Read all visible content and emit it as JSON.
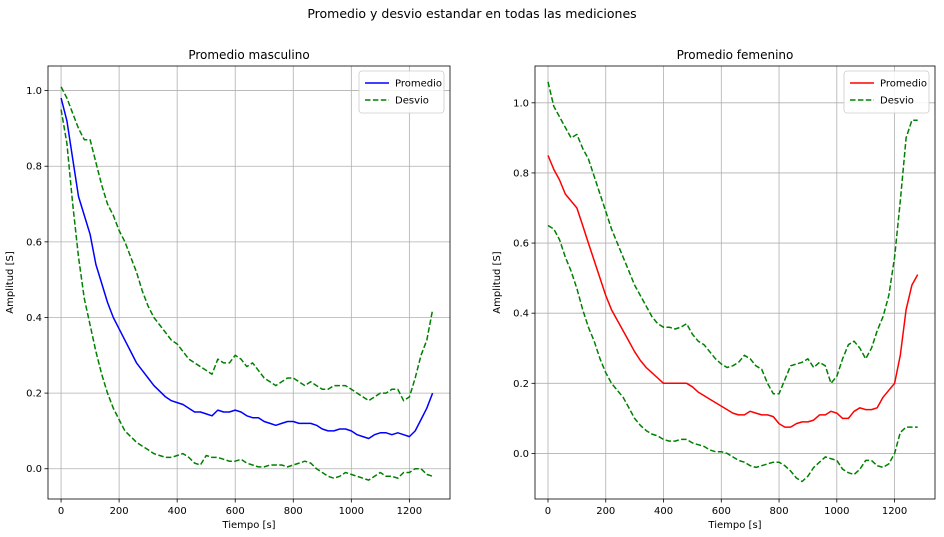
{
  "figure": {
    "title": "Promedio y desvio estandar en todas las mediciones"
  },
  "chart_data": [
    {
      "type": "line",
      "title": "Promedio  masculino",
      "xlabel": "Tiempo [s]",
      "ylabel": "Amplitud [S]",
      "xlim": [
        -45,
        1340
      ],
      "ylim": [
        -0.08,
        1.065
      ],
      "xticks": [
        0,
        200,
        400,
        600,
        800,
        1000,
        1200
      ],
      "xtick_labels": [
        "0",
        "200",
        "400",
        "600",
        "800",
        "1000",
        "1200"
      ],
      "yticks": [
        0.0,
        0.2,
        0.4,
        0.6,
        0.8,
        1.0
      ],
      "ytick_labels": [
        "0.0",
        "0.2",
        "0.4",
        "0.6",
        "0.8",
        "1.0"
      ],
      "grid": true,
      "legend": "top-right",
      "series": [
        {
          "name": "Promedio",
          "color": "#0000ff",
          "style": "solid",
          "x": [
            0,
            20,
            40,
            60,
            80,
            100,
            120,
            140,
            160,
            180,
            200,
            220,
            240,
            260,
            280,
            300,
            320,
            340,
            360,
            380,
            400,
            420,
            440,
            460,
            480,
            500,
            520,
            540,
            560,
            580,
            600,
            620,
            640,
            660,
            680,
            700,
            720,
            740,
            760,
            780,
            800,
            820,
            840,
            860,
            880,
            900,
            920,
            940,
            960,
            980,
            1000,
            1020,
            1040,
            1060,
            1080,
            1100,
            1120,
            1140,
            1160,
            1180,
            1200,
            1220,
            1240,
            1260,
            1280
          ],
          "y": [
            0.98,
            0.92,
            0.82,
            0.72,
            0.67,
            0.62,
            0.54,
            0.49,
            0.44,
            0.4,
            0.37,
            0.34,
            0.31,
            0.28,
            0.26,
            0.24,
            0.22,
            0.205,
            0.19,
            0.18,
            0.175,
            0.17,
            0.16,
            0.15,
            0.15,
            0.145,
            0.14,
            0.155,
            0.15,
            0.15,
            0.155,
            0.15,
            0.14,
            0.135,
            0.135,
            0.125,
            0.12,
            0.115,
            0.12,
            0.125,
            0.125,
            0.12,
            0.12,
            0.12,
            0.115,
            0.105,
            0.1,
            0.1,
            0.105,
            0.105,
            0.1,
            0.09,
            0.085,
            0.08,
            0.09,
            0.095,
            0.095,
            0.09,
            0.095,
            0.09,
            0.085,
            0.1,
            0.13,
            0.16,
            0.2
          ]
        },
        {
          "name": "Desvio",
          "color": "#008000",
          "style": "dashed",
          "x": [
            0,
            20,
            40,
            60,
            80,
            100,
            120,
            140,
            160,
            180,
            200,
            220,
            240,
            260,
            280,
            300,
            320,
            340,
            360,
            380,
            400,
            420,
            440,
            460,
            480,
            500,
            520,
            540,
            560,
            580,
            600,
            620,
            640,
            660,
            680,
            700,
            720,
            740,
            760,
            780,
            800,
            820,
            840,
            860,
            880,
            900,
            920,
            940,
            960,
            980,
            1000,
            1020,
            1040,
            1060,
            1080,
            1100,
            1120,
            1140,
            1160,
            1180,
            1200,
            1220,
            1240,
            1260,
            1280
          ],
          "y": [
            1.01,
            0.98,
            0.94,
            0.9,
            0.87,
            0.87,
            0.81,
            0.75,
            0.7,
            0.67,
            0.63,
            0.6,
            0.56,
            0.52,
            0.47,
            0.43,
            0.4,
            0.38,
            0.36,
            0.34,
            0.33,
            0.31,
            0.29,
            0.28,
            0.27,
            0.26,
            0.25,
            0.29,
            0.28,
            0.28,
            0.3,
            0.29,
            0.27,
            0.28,
            0.26,
            0.24,
            0.23,
            0.22,
            0.23,
            0.24,
            0.24,
            0.23,
            0.22,
            0.23,
            0.22,
            0.21,
            0.21,
            0.22,
            0.22,
            0.22,
            0.21,
            0.2,
            0.19,
            0.18,
            0.19,
            0.2,
            0.2,
            0.21,
            0.21,
            0.18,
            0.19,
            0.24,
            0.3,
            0.34,
            0.42
          ]
        },
        {
          "name": "",
          "color": "#008000",
          "style": "dashed",
          "x": [
            0,
            20,
            40,
            60,
            80,
            100,
            120,
            140,
            160,
            180,
            200,
            220,
            240,
            260,
            280,
            300,
            320,
            340,
            360,
            380,
            400,
            420,
            440,
            460,
            480,
            500,
            520,
            540,
            560,
            580,
            600,
            620,
            640,
            660,
            680,
            700,
            720,
            740,
            760,
            780,
            800,
            820,
            840,
            860,
            880,
            900,
            920,
            940,
            960,
            980,
            1000,
            1020,
            1040,
            1060,
            1080,
            1100,
            1120,
            1140,
            1160,
            1180,
            1200,
            1220,
            1240,
            1260,
            1280
          ],
          "y": [
            0.95,
            0.86,
            0.7,
            0.56,
            0.45,
            0.38,
            0.31,
            0.25,
            0.2,
            0.16,
            0.13,
            0.1,
            0.085,
            0.07,
            0.06,
            0.05,
            0.04,
            0.035,
            0.03,
            0.03,
            0.035,
            0.04,
            0.03,
            0.015,
            0.01,
            0.035,
            0.03,
            0.03,
            0.025,
            0.02,
            0.02,
            0.025,
            0.015,
            0.01,
            0.005,
            0.005,
            0.01,
            0.01,
            0.01,
            0.005,
            0.01,
            0.015,
            0.02,
            0.015,
            0.0,
            -0.01,
            -0.02,
            -0.025,
            -0.02,
            -0.01,
            -0.015,
            -0.02,
            -0.025,
            -0.03,
            -0.02,
            -0.01,
            -0.02,
            -0.02,
            -0.025,
            -0.01,
            -0.01,
            0.0,
            0.0,
            -0.015,
            -0.02
          ]
        }
      ]
    },
    {
      "type": "line",
      "title": "Promedio  femenino",
      "xlabel": "Tiempo [s]",
      "ylabel": "Amplitud [S]",
      "xlim": [
        -45,
        1340
      ],
      "ylim": [
        -0.13,
        1.105
      ],
      "xticks": [
        0,
        200,
        400,
        600,
        800,
        1000,
        1200
      ],
      "xtick_labels": [
        "0",
        "200",
        "400",
        "600",
        "800",
        "1000",
        "1200"
      ],
      "yticks": [
        0.0,
        0.2,
        0.4,
        0.6,
        0.8,
        1.0
      ],
      "ytick_labels": [
        "0.0",
        "0.2",
        "0.4",
        "0.6",
        "0.8",
        "1.0"
      ],
      "grid": true,
      "legend": "top-right",
      "series": [
        {
          "name": "Promedio",
          "color": "#ff0000",
          "style": "solid",
          "x": [
            0,
            20,
            40,
            60,
            80,
            100,
            120,
            140,
            160,
            180,
            200,
            220,
            240,
            260,
            280,
            300,
            320,
            340,
            360,
            380,
            400,
            420,
            440,
            460,
            480,
            500,
            520,
            540,
            560,
            580,
            600,
            620,
            640,
            660,
            680,
            700,
            720,
            740,
            760,
            780,
            800,
            820,
            840,
            860,
            880,
            900,
            920,
            940,
            960,
            980,
            1000,
            1020,
            1040,
            1060,
            1080,
            1100,
            1120,
            1140,
            1160,
            1180,
            1200,
            1220,
            1240,
            1260,
            1280
          ],
          "y": [
            0.85,
            0.81,
            0.78,
            0.74,
            0.72,
            0.7,
            0.65,
            0.6,
            0.55,
            0.5,
            0.45,
            0.41,
            0.38,
            0.35,
            0.32,
            0.29,
            0.265,
            0.245,
            0.23,
            0.215,
            0.2,
            0.2,
            0.2,
            0.2,
            0.2,
            0.19,
            0.175,
            0.165,
            0.155,
            0.145,
            0.135,
            0.125,
            0.115,
            0.11,
            0.11,
            0.12,
            0.115,
            0.11,
            0.11,
            0.105,
            0.085,
            0.075,
            0.075,
            0.085,
            0.09,
            0.09,
            0.095,
            0.11,
            0.11,
            0.12,
            0.115,
            0.1,
            0.1,
            0.12,
            0.13,
            0.125,
            0.125,
            0.13,
            0.16,
            0.18,
            0.2,
            0.28,
            0.41,
            0.48,
            0.51
          ]
        },
        {
          "name": "Desvio",
          "color": "#008000",
          "style": "dashed",
          "x": [
            0,
            20,
            40,
            60,
            80,
            100,
            120,
            140,
            160,
            180,
            200,
            220,
            240,
            260,
            280,
            300,
            320,
            340,
            360,
            380,
            400,
            420,
            440,
            460,
            480,
            500,
            520,
            540,
            560,
            580,
            600,
            620,
            640,
            660,
            680,
            700,
            720,
            740,
            760,
            780,
            800,
            820,
            840,
            860,
            880,
            900,
            920,
            940,
            960,
            980,
            1000,
            1020,
            1040,
            1060,
            1080,
            1100,
            1120,
            1140,
            1160,
            1180,
            1200,
            1220,
            1240,
            1260,
            1280
          ],
          "y": [
            1.06,
            0.99,
            0.96,
            0.93,
            0.9,
            0.91,
            0.87,
            0.84,
            0.79,
            0.74,
            0.69,
            0.64,
            0.6,
            0.56,
            0.52,
            0.48,
            0.45,
            0.42,
            0.39,
            0.37,
            0.36,
            0.36,
            0.355,
            0.36,
            0.37,
            0.34,
            0.32,
            0.31,
            0.29,
            0.27,
            0.255,
            0.245,
            0.25,
            0.26,
            0.28,
            0.27,
            0.25,
            0.24,
            0.2,
            0.17,
            0.17,
            0.21,
            0.25,
            0.255,
            0.26,
            0.27,
            0.245,
            0.26,
            0.25,
            0.2,
            0.22,
            0.27,
            0.31,
            0.32,
            0.3,
            0.27,
            0.3,
            0.35,
            0.39,
            0.45,
            0.56,
            0.72,
            0.9,
            0.95,
            0.95
          ]
        },
        {
          "name": "",
          "color": "#008000",
          "style": "dashed",
          "x": [
            0,
            20,
            40,
            60,
            80,
            100,
            120,
            140,
            160,
            180,
            200,
            220,
            240,
            260,
            280,
            300,
            320,
            340,
            360,
            380,
            400,
            420,
            440,
            460,
            480,
            500,
            520,
            540,
            560,
            580,
            600,
            620,
            640,
            660,
            680,
            700,
            720,
            740,
            760,
            780,
            800,
            820,
            840,
            860,
            880,
            900,
            920,
            940,
            960,
            980,
            1000,
            1020,
            1040,
            1060,
            1080,
            1100,
            1120,
            1140,
            1160,
            1180,
            1200,
            1220,
            1240,
            1260,
            1280
          ],
          "y": [
            0.65,
            0.64,
            0.61,
            0.56,
            0.52,
            0.47,
            0.41,
            0.36,
            0.32,
            0.27,
            0.23,
            0.2,
            0.18,
            0.16,
            0.13,
            0.1,
            0.08,
            0.065,
            0.055,
            0.05,
            0.04,
            0.035,
            0.035,
            0.04,
            0.04,
            0.03,
            0.025,
            0.02,
            0.01,
            0.005,
            0.005,
            0.0,
            -0.01,
            -0.02,
            -0.025,
            -0.035,
            -0.04,
            -0.035,
            -0.03,
            -0.025,
            -0.025,
            -0.035,
            -0.05,
            -0.07,
            -0.08,
            -0.065,
            -0.04,
            -0.025,
            -0.01,
            -0.015,
            -0.02,
            -0.045,
            -0.055,
            -0.06,
            -0.045,
            -0.02,
            -0.02,
            -0.035,
            -0.04,
            -0.03,
            0.0,
            0.06,
            0.075,
            0.075,
            0.075
          ]
        }
      ]
    }
  ]
}
